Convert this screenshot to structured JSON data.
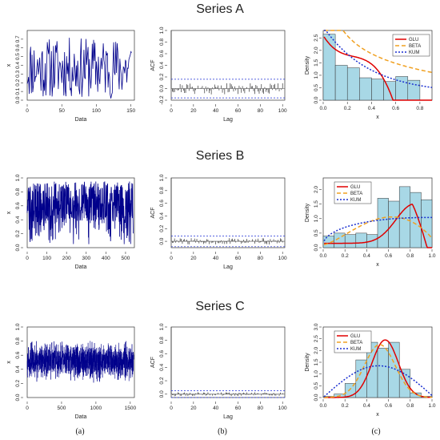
{
  "figure": {
    "captions": [
      "(a)",
      "(b)",
      "(c)"
    ]
  },
  "rows": [
    {
      "title": "Series A",
      "chart_data": [
        {
          "type": "line",
          "xlabel": "Data",
          "ylabel": "x",
          "xlim": [
            0,
            155
          ],
          "ylim": [
            0,
            0.8
          ],
          "xticks": [
            "0",
            "50",
            "100",
            "150"
          ],
          "yticks": [
            "0.0",
            "0.1",
            "0.2",
            "0.3",
            "0.4",
            "0.5",
            "0.6",
            "0.7"
          ],
          "n": 152,
          "seed": 11,
          "mode": "wide"
        },
        {
          "type": "bar",
          "xlabel": "Lag",
          "ylabel": "ACF",
          "xlim": [
            0,
            102
          ],
          "ylim": [
            -0.2,
            1.0
          ],
          "xticks": [
            "0",
            "20",
            "40",
            "60",
            "80",
            "100"
          ],
          "yticks": [
            "-0.2",
            "0.0",
            "0.2",
            "0.4",
            "0.6",
            "0.8",
            "1.0"
          ],
          "conf": 0.16,
          "seed": 21,
          "amp": 0.1
        },
        {
          "type": "histogram",
          "xlabel": "x",
          "ylabel": "Density",
          "xlim": [
            0,
            0.9
          ],
          "ylim": [
            0,
            2.8
          ],
          "xticks": [
            "0.0",
            "0.2",
            "0.4",
            "0.6",
            "0.8"
          ],
          "yticks": [
            "0.0",
            "0.5",
            "1.0",
            "1.5",
            "2.0",
            "2.5"
          ],
          "bins": [
            0,
            0.1,
            0.2,
            0.3,
            0.4,
            0.5,
            0.6,
            0.7,
            0.8
          ],
          "values": [
            2.65,
            1.4,
            1.3,
            0.9,
            0.85,
            0.75,
            0.95,
            0.8
          ],
          "legend": [
            "GLU",
            "BETA",
            "KUM"
          ],
          "legend_position": "top-right",
          "curves": "A"
        }
      ]
    },
    {
      "title": "Series B",
      "chart_data": [
        {
          "type": "line",
          "xlabel": "Data",
          "ylabel": "x",
          "xlim": [
            0,
            545
          ],
          "ylim": [
            0,
            1.0
          ],
          "xticks": [
            "0",
            "100",
            "200",
            "300",
            "400",
            "500"
          ],
          "yticks": [
            "0.0",
            "0.2",
            "0.4",
            "0.6",
            "0.8",
            "1.0"
          ],
          "n": 540,
          "seed": 33,
          "mode": "high"
        },
        {
          "type": "bar",
          "xlabel": "Lag",
          "ylabel": "ACF",
          "xlim": [
            0,
            102
          ],
          "ylim": [
            -0.1,
            1.0
          ],
          "xticks": [
            "0",
            "20",
            "40",
            "60",
            "80",
            "100"
          ],
          "yticks": [
            "0.0",
            "0.2",
            "0.4",
            "0.6",
            "0.8",
            "1.0"
          ],
          "conf": 0.085,
          "seed": 44,
          "amp": 0.05
        },
        {
          "type": "histogram",
          "xlabel": "x",
          "ylabel": "Density",
          "xlim": [
            0,
            1.0
          ],
          "ylim": [
            0,
            2.4
          ],
          "xticks": [
            "0.0",
            "0.2",
            "0.4",
            "0.6",
            "0.8",
            "1.0"
          ],
          "yticks": [
            "0.0",
            "0.5",
            "1.0",
            "1.5",
            "2.0"
          ],
          "bins": [
            0,
            0.1,
            0.2,
            0.3,
            0.4,
            0.5,
            0.6,
            0.7,
            0.8,
            0.9,
            1.0
          ],
          "values": [
            0.4,
            0.5,
            0.45,
            0.5,
            0.45,
            1.7,
            1.6,
            2.1,
            1.9,
            1.65
          ],
          "legend": [
            "GLU",
            "BETA",
            "KUM"
          ],
          "legend_position": "top-left",
          "curves": "B"
        }
      ]
    },
    {
      "title": "Series C",
      "chart_data": [
        {
          "type": "line",
          "xlabel": "Data",
          "ylabel": "x",
          "xlim": [
            0,
            1560
          ],
          "ylim": [
            0,
            1.0
          ],
          "xticks": [
            "0",
            "500",
            "1000",
            "1500"
          ],
          "yticks": [
            "0.0",
            "0.2",
            "0.4",
            "0.6",
            "0.8",
            "1.0"
          ],
          "n": 1550,
          "seed": 55,
          "mode": "mid"
        },
        {
          "type": "bar",
          "xlabel": "Lag",
          "ylabel": "ACF",
          "xlim": [
            0,
            102
          ],
          "ylim": [
            -0.05,
            1.0
          ],
          "xticks": [
            "0",
            "20",
            "40",
            "60",
            "80",
            "100"
          ],
          "yticks": [
            "0.0",
            "0.2",
            "0.4",
            "0.6",
            "0.8",
            "1.0"
          ],
          "conf": 0.05,
          "seed": 66,
          "amp": 0.03
        },
        {
          "type": "histogram",
          "xlabel": "x",
          "ylabel": "Density",
          "xlim": [
            0,
            1.0
          ],
          "ylim": [
            0,
            3.0
          ],
          "xticks": [
            "0.0",
            "0.2",
            "0.4",
            "0.6",
            "0.8",
            "1.0"
          ],
          "yticks": [
            "0.0",
            "0.5",
            "1.0",
            "1.5",
            "2.0",
            "2.5",
            "3.0"
          ],
          "bins": [
            0,
            0.1,
            0.2,
            0.3,
            0.4,
            0.5,
            0.6,
            0.7,
            0.8,
            0.9,
            1.0
          ],
          "values": [
            0.05,
            0.15,
            0.6,
            1.6,
            2.35,
            2.1,
            2.35,
            1.2,
            0.2,
            0.05
          ],
          "legend": [
            "GLU",
            "BETA",
            "KUM"
          ],
          "legend_position": "top-left",
          "curves": "C"
        }
      ]
    }
  ]
}
